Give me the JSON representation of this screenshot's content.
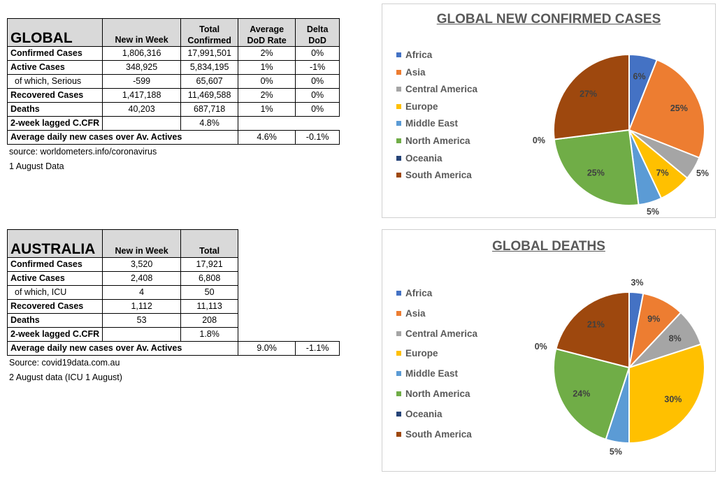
{
  "global": {
    "title": "GLOBAL",
    "headers": [
      "New in Week",
      "Total Confirmed",
      "Average DoD Rate",
      "Delta DoD"
    ],
    "header_lines": [
      [
        "New in Week"
      ],
      [
        "Total",
        "Confirmed"
      ],
      [
        "Average",
        "DoD  Rate"
      ],
      [
        "Delta",
        "DoD"
      ]
    ],
    "rows": [
      {
        "label": "Confirmed Cases",
        "week": "1,806,316",
        "total": "17,991,501",
        "rate": "2%",
        "delta": "0%"
      },
      {
        "label": "Active Cases",
        "week": "348,925",
        "total": "5,834,195",
        "rate": "1%",
        "delta": "-1%"
      },
      {
        "label": "  of which, Serious",
        "week": "-599",
        "total": "65,607",
        "rate": "0%",
        "delta": "0%"
      },
      {
        "label": "Recovered Cases",
        "week": "1,417,188",
        "total": "11,469,588",
        "rate": "2%",
        "delta": "0%"
      },
      {
        "label": "Deaths",
        "week": "40,203",
        "total": "687,718",
        "rate": "1%",
        "delta": "0%"
      }
    ],
    "cfr": {
      "label": "2-week lagged C.CFR",
      "value": "4.8%"
    },
    "avg": {
      "label": "Average daily new cases over Av. Actives",
      "rate": "4.6%",
      "delta": "-0.1%"
    },
    "notes": [
      "source: worldometers.info/coronavirus",
      "1 August Data"
    ]
  },
  "australia": {
    "title": "AUSTRALIA",
    "headers": [
      "New in Week",
      "Total"
    ],
    "rows": [
      {
        "label": "Confirmed Cases",
        "week": "3,520",
        "total": "17,921"
      },
      {
        "label": "Active Cases",
        "week": "2,408",
        "total": "6,808"
      },
      {
        "label": "  of which, ICU",
        "week": "4",
        "total": "50"
      },
      {
        "label": "Recovered Cases",
        "week": "1,112",
        "total": "11,113"
      },
      {
        "label": "Deaths",
        "week": "53",
        "total": "208"
      }
    ],
    "cfr": {
      "label": "2-week lagged C.CFR",
      "value": "1.8%"
    },
    "avg": {
      "label": "Average daily new cases over Av. Actives",
      "rate": "9.0%",
      "delta": "-1.1%"
    },
    "notes": [
      "Source: covid19data.com.au",
      "2 August data (ICU 1 August)"
    ]
  },
  "chart_data": [
    {
      "type": "pie",
      "title": "GLOBAL NEW CONFIRMED CASES",
      "categories": [
        "Africa",
        "Asia",
        "Central America",
        "Europe",
        "Middle East",
        "North America",
        "Oceania",
        "South America"
      ],
      "values": [
        6,
        25,
        5,
        7,
        5,
        25,
        0,
        27
      ],
      "labels": [
        "6%",
        "25%",
        "5%",
        "7%",
        "5%",
        "25%",
        "0%",
        "27%"
      ],
      "colors": [
        "#4472c4",
        "#ed7d31",
        "#a5a5a5",
        "#ffc000",
        "#5b9bd5",
        "#70ad47",
        "#264478",
        "#9e480e"
      ],
      "legend": "left"
    },
    {
      "type": "pie",
      "title": "GLOBAL DEATHS",
      "categories": [
        "Africa",
        "Asia",
        "Central America",
        "Europe",
        "Middle East",
        "North America",
        "Oceania",
        "South America"
      ],
      "values": [
        3,
        9,
        8,
        30,
        5,
        24,
        0,
        21
      ],
      "labels": [
        "3%",
        "9%",
        "8%",
        "30%",
        "5%",
        "24%",
        "0%",
        "21%"
      ],
      "colors": [
        "#4472c4",
        "#ed7d31",
        "#a5a5a5",
        "#ffc000",
        "#5b9bd5",
        "#70ad47",
        "#264478",
        "#9e480e"
      ],
      "legend": "left"
    }
  ]
}
